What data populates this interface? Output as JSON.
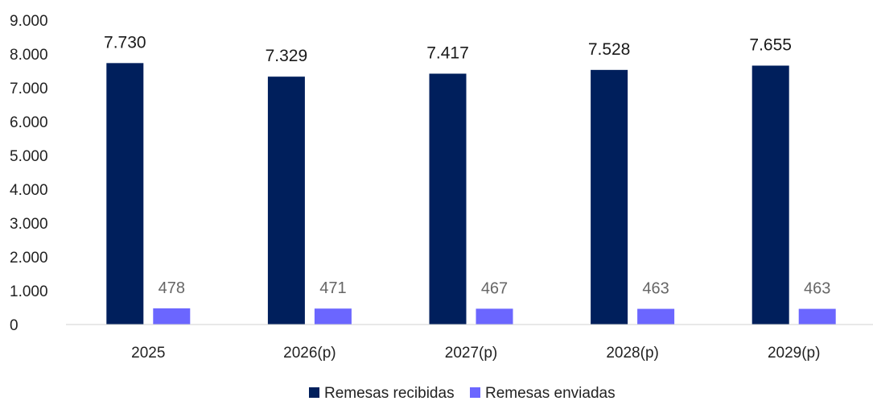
{
  "chart_data": {
    "type": "bar",
    "categories": [
      "2025",
      "2026(p)",
      "2027(p)",
      "2028(p)",
      "2029(p)"
    ],
    "series": [
      {
        "name": "Remesas recibidas",
        "values": [
          7730,
          7329,
          7417,
          7528,
          7655
        ],
        "labels": [
          "7.730",
          "7.329",
          "7.417",
          "7.528",
          "7.655"
        ],
        "color": "#001f5c"
      },
      {
        "name": "Remesas enviadas",
        "values": [
          478,
          471,
          467,
          463,
          463
        ],
        "labels": [
          "478",
          "471",
          "467",
          "463",
          "463"
        ],
        "color": "#6b66ff"
      }
    ],
    "yticks": [
      "0",
      "1.000",
      "2.000",
      "3.000",
      "4.000",
      "5.000",
      "6.000",
      "7.000",
      "8.000",
      "9.000"
    ],
    "ylim": [
      0,
      9000
    ],
    "grid": false,
    "legend_position": "bottom"
  }
}
